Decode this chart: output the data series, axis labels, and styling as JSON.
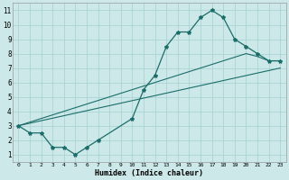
{
  "xlabel": "Humidex (Indice chaleur)",
  "background_color": "#cce8e8",
  "line_color": "#1a6e6a",
  "grid_color": "#aad4d4",
  "xlim": [
    -0.5,
    23.5
  ],
  "ylim": [
    0.5,
    11.5
  ],
  "xticks": [
    0,
    1,
    2,
    3,
    4,
    5,
    6,
    7,
    8,
    9,
    10,
    11,
    12,
    13,
    14,
    15,
    16,
    17,
    18,
    19,
    20,
    21,
    22,
    23
  ],
  "yticks": [
    1,
    2,
    3,
    4,
    5,
    6,
    7,
    8,
    9,
    10,
    11
  ],
  "line1_x": [
    0,
    1,
    2,
    3,
    4,
    5,
    6,
    7,
    10,
    11,
    12,
    13,
    14,
    15,
    16,
    17,
    18,
    19,
    20,
    21,
    22,
    23
  ],
  "line1_y": [
    3,
    2.5,
    2.5,
    1.5,
    1.5,
    1,
    1.5,
    2,
    3.5,
    5.5,
    6.5,
    8.5,
    9.5,
    9.5,
    10.5,
    11,
    10.5,
    9,
    8.5,
    8,
    7.5,
    7.5
  ],
  "line2_x": [
    0,
    20,
    21,
    22,
    23
  ],
  "line2_y": [
    3,
    8.0,
    7.8,
    7.5,
    7.5
  ],
  "line3_x": [
    0,
    23
  ],
  "line3_y": [
    3,
    7.0
  ]
}
